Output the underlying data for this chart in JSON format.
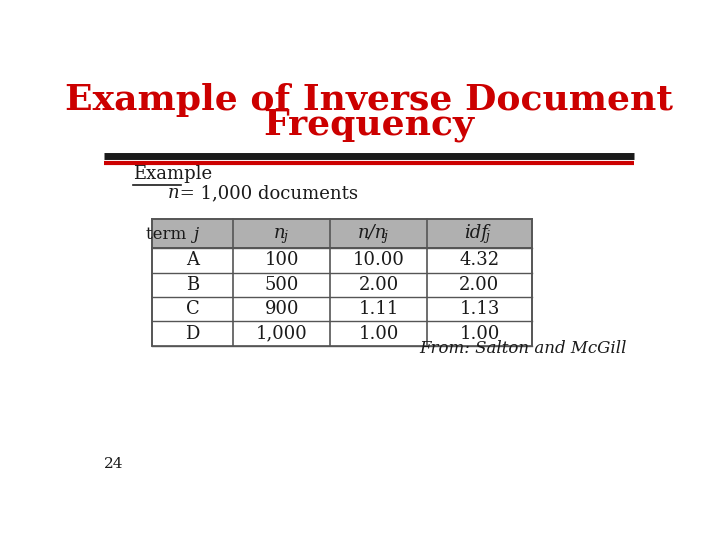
{
  "title_line1": "Example of Inverse Document",
  "title_line2": "Frequency",
  "title_color": "#cc0000",
  "title_fontsize": 26,
  "section_label": "Example",
  "rows": [
    [
      "A",
      "100",
      "10.00",
      "4.32"
    ],
    [
      "B",
      "500",
      "2.00",
      "2.00"
    ],
    [
      "C",
      "900",
      "1.11",
      "1.13"
    ],
    [
      "D",
      "1,000",
      "1.00",
      "1.00"
    ]
  ],
  "header_bg": "#b0b0b0",
  "table_border_color": "#555555",
  "caption": "From: Salton and McGill",
  "slide_number": "24",
  "bg_color": "#ffffff",
  "thick_line_color": "#1a1a1a",
  "red_line_color": "#cc0000",
  "text_color": "#1a1a1a"
}
